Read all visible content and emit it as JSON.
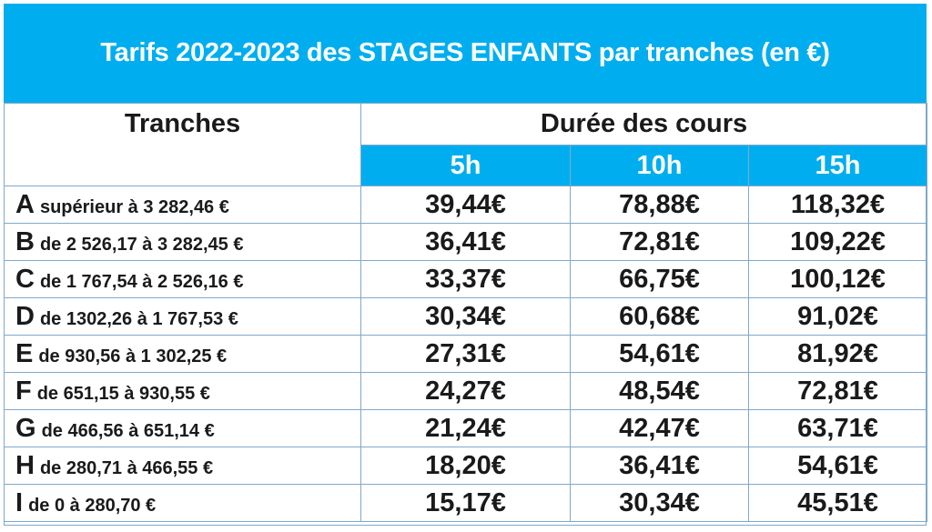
{
  "title": "Tarifs 2022-2023 des STAGES ENFANTS par tranches (en €)",
  "header": {
    "tranches_label": "Tranches",
    "duree_label": "Durée des cours",
    "durations": [
      "5h",
      "10h",
      "15h"
    ]
  },
  "colors": {
    "accent": "#00aeef",
    "border": "#7fa9c9",
    "text": "#1a1a1a"
  },
  "rows": [
    {
      "letter": "A",
      "range": "supérieur à 3 282,46 €",
      "values": [
        "39,44€",
        "78,88€",
        "118,32€"
      ]
    },
    {
      "letter": "B",
      "range": "de 2 526,17 à 3 282,45 €",
      "values": [
        "36,41€",
        "72,81€",
        "109,22€"
      ]
    },
    {
      "letter": "C",
      "range": "de 1 767,54 à 2 526,16 €",
      "values": [
        "33,37€",
        "66,75€",
        "100,12€"
      ]
    },
    {
      "letter": "D",
      "range": "de 1302,26 à 1 767,53 €",
      "values": [
        "30,34€",
        "60,68€",
        "91,02€"
      ]
    },
    {
      "letter": "E",
      "range": "de 930,56 à 1 302,25 €",
      "values": [
        "27,31€",
        "54,61€",
        "81,92€"
      ]
    },
    {
      "letter": "F",
      "range": "de 651,15 à 930,55 €",
      "values": [
        "24,27€",
        "48,54€",
        "72,81€"
      ]
    },
    {
      "letter": "G",
      "range": "de 466,56 à 651,14 €",
      "values": [
        "21,24€",
        "42,47€",
        "63,71€"
      ]
    },
    {
      "letter": "H",
      "range": "de 280,71 à 466,55 €",
      "values": [
        "18,20€",
        "36,41€",
        "54,61€"
      ]
    },
    {
      "letter": "I",
      "range": "de 0 à 280,70 €",
      "values": [
        "15,17€",
        "30,34€",
        "45,51€"
      ]
    }
  ]
}
